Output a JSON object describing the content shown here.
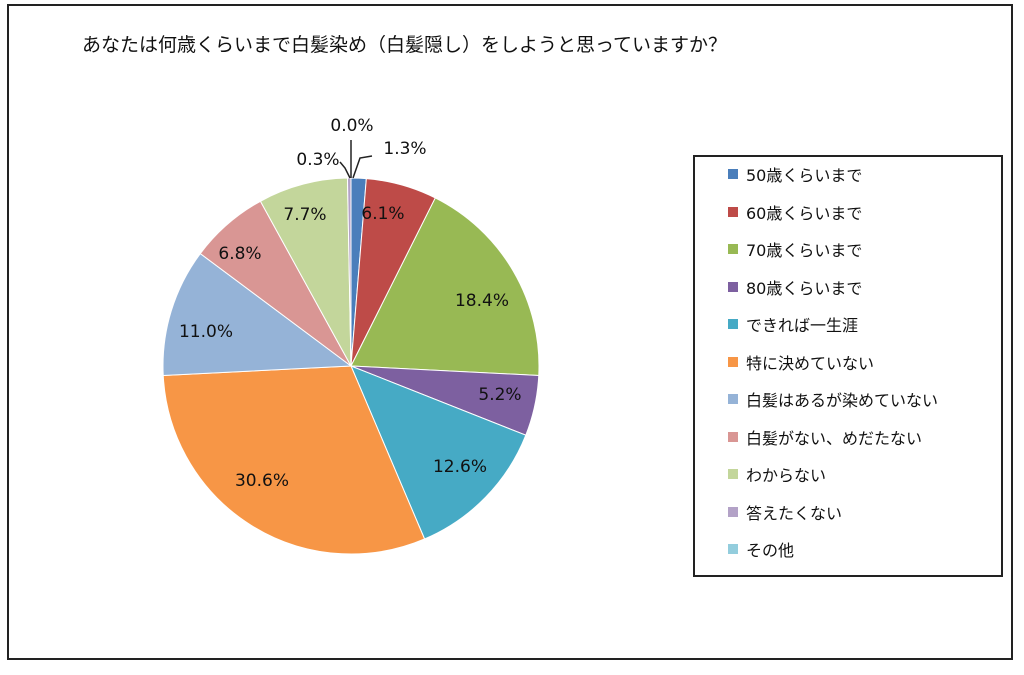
{
  "chart_data": {
    "type": "pie",
    "title": "あなたは何歳くらいまで白髪染め（白髪隠し）をしようと思っていますか？",
    "slices": [
      {
        "label": "50歳くらいまで",
        "value": 1.3,
        "display": "1.3%",
        "color": "#4a7ebb"
      },
      {
        "label": "60歳くらいまで",
        "value": 6.1,
        "display": "6.1%",
        "color": "#be4b48"
      },
      {
        "label": "70歳くらいまで",
        "value": 18.4,
        "display": "18.4%",
        "color": "#98b954"
      },
      {
        "label": "80歳くらいまで",
        "value": 5.2,
        "display": "5.2%",
        "color": "#7d60a0"
      },
      {
        "label": "できれば一生涯",
        "value": 12.6,
        "display": "12.6%",
        "color": "#46aac5"
      },
      {
        "label": "特に決めていない",
        "value": 30.6,
        "display": "30.6%",
        "color": "#f79646"
      },
      {
        "label": "白髪はあるが染めていない",
        "value": 11.0,
        "display": "11.0%",
        "color": "#95b3d7"
      },
      {
        "label": "白髪がない、めだたない",
        "value": 6.8,
        "display": "6.8%",
        "color": "#d99694"
      },
      {
        "label": "わからない",
        "value": 7.7,
        "display": "7.7%",
        "color": "#c3d69b"
      },
      {
        "label": "答えたくない",
        "value": 0.3,
        "display": "0.3%",
        "color": "#b3a2c7"
      },
      {
        "label": "その他",
        "value": 0.0,
        "display": "0.0%",
        "color": "#93cddd"
      }
    ],
    "legend_position": "right"
  }
}
